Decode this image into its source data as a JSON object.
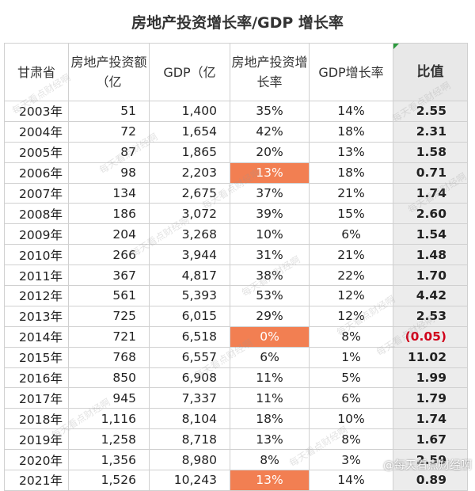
{
  "title": "房地产投资增长率/GDP 增长率",
  "headers": {
    "province": "甘肃省",
    "investment": "房地产投资额（亿",
    "gdp": "GDP（亿",
    "invest_growth": "房地产投资增长率",
    "gdp_growth": "GDP增长率",
    "ratio": "比值"
  },
  "rows": [
    {
      "year": "2003年",
      "investment": "51",
      "gdp": "1,400",
      "invest_growth": "35%",
      "gdp_growth": "14%",
      "ratio": "2.55"
    },
    {
      "year": "2004年",
      "investment": "72",
      "gdp": "1,654",
      "invest_growth": "42%",
      "gdp_growth": "18%",
      "ratio": "2.31"
    },
    {
      "year": "2005年",
      "investment": "87",
      "gdp": "1,865",
      "invest_growth": "20%",
      "gdp_growth": "13%",
      "ratio": "1.58"
    },
    {
      "year": "2006年",
      "investment": "98",
      "gdp": "2,203",
      "invest_growth": "13%",
      "gdp_growth": "18%",
      "ratio": "0.71",
      "highlight": true
    },
    {
      "year": "2007年",
      "investment": "134",
      "gdp": "2,675",
      "invest_growth": "37%",
      "gdp_growth": "21%",
      "ratio": "1.74"
    },
    {
      "year": "2008年",
      "investment": "186",
      "gdp": "3,072",
      "invest_growth": "39%",
      "gdp_growth": "15%",
      "ratio": "2.60"
    },
    {
      "year": "2009年",
      "investment": "204",
      "gdp": "3,268",
      "invest_growth": "10%",
      "gdp_growth": "6%",
      "ratio": "1.54"
    },
    {
      "year": "2010年",
      "investment": "266",
      "gdp": "3,944",
      "invest_growth": "31%",
      "gdp_growth": "21%",
      "ratio": "1.48"
    },
    {
      "year": "2011年",
      "investment": "367",
      "gdp": "4,817",
      "invest_growth": "38%",
      "gdp_growth": "22%",
      "ratio": "1.70"
    },
    {
      "year": "2012年",
      "investment": "561",
      "gdp": "5,393",
      "invest_growth": "53%",
      "gdp_growth": "12%",
      "ratio": "4.42"
    },
    {
      "year": "2013年",
      "investment": "725",
      "gdp": "6,015",
      "invest_growth": "29%",
      "gdp_growth": "12%",
      "ratio": "2.53"
    },
    {
      "year": "2014年",
      "investment": "721",
      "gdp": "6,518",
      "invest_growth": "0%",
      "gdp_growth": "8%",
      "ratio": "(0.05)",
      "highlight": true,
      "negative": true
    },
    {
      "year": "2015年",
      "investment": "768",
      "gdp": "6,557",
      "invest_growth": "6%",
      "gdp_growth": "1%",
      "ratio": "11.02"
    },
    {
      "year": "2016年",
      "investment": "850",
      "gdp": "6,908",
      "invest_growth": "11%",
      "gdp_growth": "5%",
      "ratio": "1.99"
    },
    {
      "year": "2017年",
      "investment": "945",
      "gdp": "7,337",
      "invest_growth": "11%",
      "gdp_growth": "6%",
      "ratio": "1.79"
    },
    {
      "year": "2018年",
      "investment": "1,116",
      "gdp": "8,104",
      "invest_growth": "18%",
      "gdp_growth": "10%",
      "ratio": "1.74"
    },
    {
      "year": "2019年",
      "investment": "1,258",
      "gdp": "8,718",
      "invest_growth": "13%",
      "gdp_growth": "8%",
      "ratio": "1.67"
    },
    {
      "year": "2020年",
      "investment": "1,356",
      "gdp": "8,980",
      "invest_growth": "8%",
      "gdp_growth": "3%",
      "ratio": "2.59"
    },
    {
      "year": "2021年",
      "investment": "1,526",
      "gdp": "10,243",
      "invest_growth": "13%",
      "gdp_growth": "14%",
      "ratio": "0.89",
      "highlight": true
    }
  ],
  "watermark": "每天看点财经啊",
  "brand": "@每天看点财经啊",
  "colors": {
    "highlight": "#f27f52",
    "negative": "#d0021b",
    "ratio_bg": "#ececec",
    "corner_mark": "#2a9a3c"
  }
}
